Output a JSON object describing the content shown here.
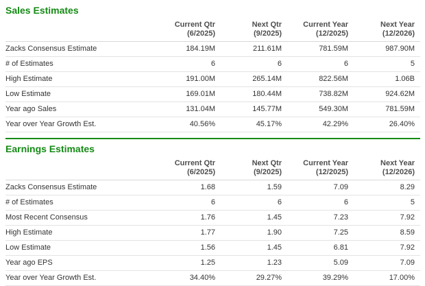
{
  "colors": {
    "accent_green": "#148a14",
    "header_text": "#4d4d4d",
    "cell_text": "#333333",
    "row_border": "#e3e3e3"
  },
  "sales": {
    "title": "Sales Estimates",
    "columns": [
      {
        "label": "Current Qtr",
        "period": "(6/2025)"
      },
      {
        "label": "Next Qtr",
        "period": "(9/2025)"
      },
      {
        "label": "Current Year",
        "period": "(12/2025)"
      },
      {
        "label": "Next Year",
        "period": "(12/2026)"
      }
    ],
    "rows": [
      {
        "label": "Zacks Consensus Estimate",
        "values": [
          "184.19M",
          "211.61M",
          "781.59M",
          "987.90M"
        ]
      },
      {
        "label": "# of Estimates",
        "values": [
          "6",
          "6",
          "6",
          "5"
        ]
      },
      {
        "label": "High Estimate",
        "values": [
          "191.00M",
          "265.14M",
          "822.56M",
          "1.06B"
        ]
      },
      {
        "label": "Low Estimate",
        "values": [
          "169.01M",
          "180.44M",
          "738.82M",
          "924.62M"
        ]
      },
      {
        "label": "Year ago Sales",
        "values": [
          "131.04M",
          "145.77M",
          "549.30M",
          "781.59M"
        ]
      },
      {
        "label": "Year over Year Growth Est.",
        "values": [
          "40.56%",
          "45.17%",
          "42.29%",
          "26.40%"
        ]
      }
    ]
  },
  "earnings": {
    "title": "Earnings Estimates",
    "columns": [
      {
        "label": "Current Qtr",
        "period": "(6/2025)"
      },
      {
        "label": "Next Qtr",
        "period": "(9/2025)"
      },
      {
        "label": "Current Year",
        "period": "(12/2025)"
      },
      {
        "label": "Next Year",
        "period": "(12/2026)"
      }
    ],
    "rows": [
      {
        "label": "Zacks Consensus Estimate",
        "values": [
          "1.68",
          "1.59",
          "7.09",
          "8.29"
        ]
      },
      {
        "label": "# of Estimates",
        "values": [
          "6",
          "6",
          "6",
          "5"
        ]
      },
      {
        "label": "Most Recent Consensus",
        "values": [
          "1.76",
          "1.45",
          "7.23",
          "7.92"
        ]
      },
      {
        "label": "High Estimate",
        "values": [
          "1.77",
          "1.90",
          "7.25",
          "8.59"
        ]
      },
      {
        "label": "Low Estimate",
        "values": [
          "1.56",
          "1.45",
          "6.81",
          "7.92"
        ]
      },
      {
        "label": "Year ago EPS",
        "values": [
          "1.25",
          "1.23",
          "5.09",
          "7.09"
        ]
      },
      {
        "label": "Year over Year Growth Est.",
        "values": [
          "34.40%",
          "29.27%",
          "39.29%",
          "17.00%"
        ]
      }
    ]
  }
}
